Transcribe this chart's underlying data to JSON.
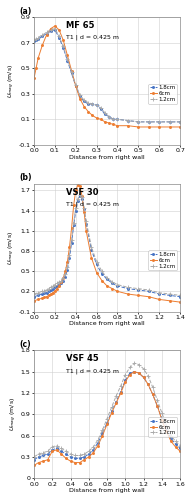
{
  "panels": [
    {
      "label": "(a)",
      "title": "MF 65",
      "subtitle": "T1 | d = 0.425 m",
      "xlim": [
        0,
        0.7
      ],
      "ylim": [
        -0.1,
        0.9
      ],
      "yticks": [
        -0.1,
        0.1,
        0.3,
        0.5,
        0.7,
        0.9
      ],
      "ytick_labels": [
        "-0.1",
        "0.1",
        "0.3",
        "0.5",
        "0.7",
        "0.9"
      ],
      "xticks": [
        0,
        0.1,
        0.2,
        0.3,
        0.4,
        0.5,
        0.6,
        0.7
      ],
      "xlabel": "Distance from right wall",
      "series": [
        {
          "name": "1.8cm",
          "color": "#4472C4",
          "style": "--",
          "marker": "o",
          "ms": 1.5,
          "x": [
            0.0,
            0.01,
            0.02,
            0.04,
            0.06,
            0.08,
            0.1,
            0.12,
            0.14,
            0.16,
            0.18,
            0.2,
            0.22,
            0.24,
            0.26,
            0.28,
            0.3,
            0.32,
            0.34,
            0.36,
            0.38,
            0.4,
            0.45,
            0.5,
            0.55,
            0.6,
            0.65,
            0.7
          ],
          "y": [
            0.71,
            0.72,
            0.73,
            0.75,
            0.77,
            0.79,
            0.8,
            0.74,
            0.66,
            0.56,
            0.46,
            0.36,
            0.28,
            0.24,
            0.22,
            0.22,
            0.21,
            0.18,
            0.14,
            0.12,
            0.1,
            0.1,
            0.09,
            0.08,
            0.08,
            0.08,
            0.08,
            0.08
          ]
        },
        {
          "name": "6cm",
          "color": "#ED7D31",
          "style": "-",
          "marker": "o",
          "ms": 1.5,
          "x": [
            0.0,
            0.01,
            0.02,
            0.04,
            0.06,
            0.08,
            0.1,
            0.12,
            0.14,
            0.16,
            0.18,
            0.2,
            0.22,
            0.24,
            0.26,
            0.28,
            0.3,
            0.32,
            0.34,
            0.36,
            0.38,
            0.4,
            0.45,
            0.5,
            0.55,
            0.6,
            0.65,
            0.7
          ],
          "y": [
            0.42,
            0.5,
            0.58,
            0.68,
            0.76,
            0.81,
            0.83,
            0.8,
            0.72,
            0.6,
            0.48,
            0.36,
            0.26,
            0.2,
            0.16,
            0.13,
            0.11,
            0.1,
            0.08,
            0.07,
            0.06,
            0.05,
            0.05,
            0.04,
            0.04,
            0.04,
            0.04,
            0.04
          ]
        },
        {
          "name": "1.2cm",
          "color": "#A9A9A9",
          "style": "--",
          "marker": "+",
          "ms": 2.5,
          "x": [
            0.0,
            0.01,
            0.02,
            0.04,
            0.06,
            0.08,
            0.1,
            0.12,
            0.14,
            0.16,
            0.18,
            0.2,
            0.22,
            0.24,
            0.26,
            0.28,
            0.3,
            0.32,
            0.34,
            0.36,
            0.38,
            0.4,
            0.45,
            0.5,
            0.55,
            0.6,
            0.65,
            0.7
          ],
          "y": [
            0.72,
            0.73,
            0.74,
            0.76,
            0.78,
            0.8,
            0.81,
            0.75,
            0.67,
            0.57,
            0.47,
            0.37,
            0.29,
            0.25,
            0.23,
            0.22,
            0.21,
            0.19,
            0.15,
            0.12,
            0.1,
            0.1,
            0.09,
            0.08,
            0.08,
            0.08,
            0.08,
            0.08
          ]
        }
      ]
    },
    {
      "label": "(b)",
      "title": "VSF 30",
      "subtitle": "T1 | d = 0.425 m",
      "xlim": [
        0,
        1.4
      ],
      "ylim": [
        -0.1,
        1.8
      ],
      "yticks": [
        -0.1,
        0.2,
        0.5,
        0.8,
        1.1,
        1.4,
        1.7
      ],
      "ytick_labels": [
        "-0.1",
        "0.2",
        "0.5",
        "0.8",
        "1.1",
        "1.4",
        "1.7"
      ],
      "xticks": [
        0,
        0.2,
        0.4,
        0.6,
        0.8,
        1.0,
        1.2,
        1.4
      ],
      "xlabel": "Distance from right wall",
      "series": [
        {
          "name": "1.8cm",
          "color": "#4472C4",
          "style": "--",
          "marker": "o",
          "ms": 1.5,
          "x": [
            0.0,
            0.04,
            0.08,
            0.1,
            0.12,
            0.14,
            0.16,
            0.18,
            0.2,
            0.22,
            0.24,
            0.26,
            0.28,
            0.3,
            0.32,
            0.34,
            0.36,
            0.38,
            0.4,
            0.42,
            0.44,
            0.46,
            0.48,
            0.5,
            0.55,
            0.6,
            0.65,
            0.7,
            0.75,
            0.8,
            0.9,
            1.0,
            1.1,
            1.2,
            1.3,
            1.4
          ],
          "y": [
            0.12,
            0.14,
            0.16,
            0.17,
            0.18,
            0.2,
            0.22,
            0.24,
            0.26,
            0.28,
            0.3,
            0.32,
            0.36,
            0.42,
            0.52,
            0.7,
            0.92,
            1.18,
            1.4,
            1.55,
            1.62,
            1.58,
            1.42,
            1.2,
            0.82,
            0.6,
            0.46,
            0.38,
            0.32,
            0.28,
            0.24,
            0.22,
            0.2,
            0.16,
            0.14,
            0.12
          ]
        },
        {
          "name": "6cm",
          "color": "#ED7D31",
          "style": "-",
          "marker": "o",
          "ms": 1.5,
          "x": [
            0.0,
            0.04,
            0.08,
            0.1,
            0.12,
            0.14,
            0.16,
            0.18,
            0.2,
            0.22,
            0.24,
            0.26,
            0.28,
            0.3,
            0.32,
            0.34,
            0.36,
            0.38,
            0.4,
            0.42,
            0.44,
            0.46,
            0.48,
            0.5,
            0.55,
            0.6,
            0.65,
            0.7,
            0.75,
            0.8,
            0.9,
            1.0,
            1.1,
            1.2,
            1.3,
            1.4
          ],
          "y": [
            0.06,
            0.08,
            0.1,
            0.11,
            0.12,
            0.14,
            0.16,
            0.18,
            0.2,
            0.24,
            0.28,
            0.34,
            0.4,
            0.5,
            0.64,
            0.86,
            1.14,
            1.48,
            1.7,
            1.78,
            1.76,
            1.62,
            1.38,
            1.1,
            0.7,
            0.48,
            0.36,
            0.28,
            0.24,
            0.2,
            0.16,
            0.14,
            0.12,
            0.08,
            0.06,
            0.04
          ]
        },
        {
          "name": "1.2cm",
          "color": "#A9A9A9",
          "style": "--",
          "marker": "+",
          "ms": 2.5,
          "x": [
            0.0,
            0.04,
            0.08,
            0.1,
            0.12,
            0.14,
            0.16,
            0.18,
            0.2,
            0.22,
            0.24,
            0.26,
            0.28,
            0.3,
            0.32,
            0.34,
            0.36,
            0.38,
            0.4,
            0.42,
            0.44,
            0.46,
            0.48,
            0.5,
            0.55,
            0.6,
            0.65,
            0.7,
            0.75,
            0.8,
            0.9,
            1.0,
            1.1,
            1.2,
            1.3,
            1.4
          ],
          "y": [
            0.16,
            0.18,
            0.2,
            0.21,
            0.22,
            0.24,
            0.26,
            0.28,
            0.3,
            0.32,
            0.34,
            0.36,
            0.4,
            0.46,
            0.56,
            0.74,
            0.96,
            1.22,
            1.44,
            1.58,
            1.64,
            1.6,
            1.44,
            1.24,
            0.86,
            0.64,
            0.5,
            0.4,
            0.34,
            0.3,
            0.26,
            0.24,
            0.22,
            0.18,
            0.16,
            0.14
          ]
        }
      ]
    },
    {
      "label": "(c)",
      "title": "VSF 45",
      "subtitle": "T1 | d = 0.425 m",
      "xlim": [
        0,
        1.6
      ],
      "ylim": [
        0.0,
        1.8
      ],
      "yticks": [
        0.0,
        0.3,
        0.6,
        0.9,
        1.2,
        1.5,
        1.8
      ],
      "ytick_labels": [
        "0",
        "0.3",
        "0.6",
        "0.9",
        "1.2",
        "1.5",
        "1.8"
      ],
      "xticks": [
        0,
        0.2,
        0.4,
        0.6,
        0.8,
        1.0,
        1.2,
        1.4,
        1.6
      ],
      "xlabel": "Distance from right wall",
      "series": [
        {
          "name": "1.8cm",
          "color": "#4472C4",
          "style": "--",
          "marker": "o",
          "ms": 1.5,
          "x": [
            0.0,
            0.05,
            0.1,
            0.15,
            0.2,
            0.25,
            0.3,
            0.35,
            0.4,
            0.45,
            0.5,
            0.55,
            0.6,
            0.65,
            0.7,
            0.75,
            0.8,
            0.85,
            0.9,
            0.95,
            1.0,
            1.05,
            1.1,
            1.15,
            1.2,
            1.25,
            1.3,
            1.35,
            1.4,
            1.45,
            1.5,
            1.55,
            1.6
          ],
          "y": [
            0.26,
            0.3,
            0.32,
            0.34,
            0.4,
            0.42,
            0.38,
            0.34,
            0.3,
            0.28,
            0.28,
            0.3,
            0.34,
            0.4,
            0.5,
            0.64,
            0.78,
            0.94,
            1.08,
            1.22,
            1.38,
            1.48,
            1.5,
            1.48,
            1.42,
            1.32,
            1.18,
            1.02,
            0.84,
            0.68,
            0.56,
            0.48,
            0.42
          ]
        },
        {
          "name": "6cm",
          "color": "#ED7D31",
          "style": "-",
          "marker": "o",
          "ms": 1.5,
          "x": [
            0.0,
            0.05,
            0.1,
            0.15,
            0.2,
            0.25,
            0.3,
            0.35,
            0.4,
            0.45,
            0.5,
            0.55,
            0.6,
            0.65,
            0.7,
            0.75,
            0.8,
            0.85,
            0.9,
            0.95,
            1.0,
            1.05,
            1.1,
            1.15,
            1.2,
            1.25,
            1.3,
            1.35,
            1.4,
            1.45,
            1.5,
            1.55,
            1.6
          ],
          "y": [
            0.18,
            0.22,
            0.24,
            0.26,
            0.38,
            0.4,
            0.34,
            0.28,
            0.24,
            0.22,
            0.22,
            0.26,
            0.3,
            0.36,
            0.46,
            0.6,
            0.76,
            0.92,
            1.06,
            1.2,
            1.36,
            1.46,
            1.5,
            1.48,
            1.42,
            1.32,
            1.18,
            1.02,
            0.82,
            0.66,
            0.52,
            0.44,
            0.38
          ]
        },
        {
          "name": "1.2cm",
          "color": "#A9A9A9",
          "style": "--",
          "marker": "+",
          "ms": 2.5,
          "x": [
            0.0,
            0.05,
            0.1,
            0.15,
            0.2,
            0.25,
            0.3,
            0.35,
            0.4,
            0.45,
            0.5,
            0.55,
            0.6,
            0.65,
            0.7,
            0.75,
            0.8,
            0.85,
            0.9,
            0.95,
            1.0,
            1.05,
            1.1,
            1.15,
            1.2,
            1.25,
            1.3,
            1.35,
            1.4,
            1.45,
            1.5,
            1.55,
            1.6
          ],
          "y": [
            0.3,
            0.34,
            0.36,
            0.38,
            0.44,
            0.46,
            0.42,
            0.38,
            0.34,
            0.32,
            0.32,
            0.34,
            0.38,
            0.44,
            0.54,
            0.68,
            0.84,
            1.0,
            1.16,
            1.3,
            1.46,
            1.56,
            1.62,
            1.6,
            1.54,
            1.44,
            1.28,
            1.1,
            0.92,
            0.74,
            0.6,
            0.52,
            0.46
          ]
        }
      ]
    }
  ],
  "background_color": "#ffffff",
  "grid_color": "#d0d0d0",
  "font_size": 4.5,
  "marker_size": 1.5,
  "line_width": 0.7
}
